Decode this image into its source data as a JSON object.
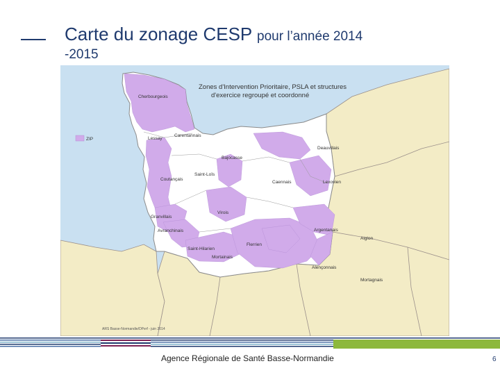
{
  "slide": {
    "title_main": "Carte du zonage CESP",
    "title_rest": "pour l’année 2014",
    "title_line2": "-2015",
    "footer": "Agence Régionale de Santé Basse-Normandie",
    "page_number": "6"
  },
  "map": {
    "title_line1": "Zones d'Intervention Prioritaire, PSLA et structures",
    "title_line2": "d'exercice regroupé et coordonné",
    "legend_label": "ZIP",
    "credit": "ARS Basse-Normandie/DPerf - juin 2014",
    "colors": {
      "sea": "#c9e0f1",
      "land": "#f3ecc6",
      "zip": "#d1abea",
      "region": "#ffffff",
      "border": "#9a8f8a"
    },
    "areas": [
      "Cherbourgeois",
      "Carentannais",
      "Lessay",
      "Bajocasse",
      "Deauvillais",
      "Saint-Loîs",
      "Coutançais",
      "Caennais",
      "Lexovien",
      "Virois",
      "Granvillais",
      "Argentanais",
      "Avranchinais",
      "Flerrien",
      "Aiglon",
      "Saint-Hilarien",
      "Mortainais",
      "Alençonnais",
      "Mortagnais"
    ]
  }
}
